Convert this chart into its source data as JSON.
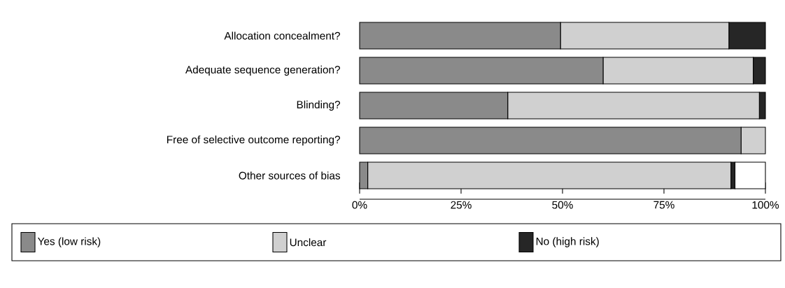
{
  "chart_data": {
    "type": "bar",
    "orientation": "horizontal",
    "stacked": true,
    "categories": [
      "Allocation concealment?",
      "Adequate sequence generation?",
      "Blinding?",
      "Free of selective outcome reporting?",
      "Other sources of bias"
    ],
    "series": [
      {
        "name": "Yes (low risk)",
        "color": "#8a8a8a",
        "values": [
          49.5,
          60,
          36.5,
          94,
          2
        ]
      },
      {
        "name": "Unclear",
        "color": "#d0d0d0",
        "values": [
          41.5,
          37,
          62,
          6,
          89.5
        ]
      },
      {
        "name": "No (high risk)",
        "color": "#262626",
        "values": [
          9,
          3,
          1.5,
          0,
          1
        ]
      },
      {
        "color": "#ffffff",
        "values": [
          0,
          0,
          0,
          0,
          7.5
        ]
      }
    ],
    "xlim": [
      0,
      100
    ],
    "xticks": [
      {
        "value": 0,
        "label": "0%"
      },
      {
        "value": 25,
        "label": "25%"
      },
      {
        "value": 50,
        "label": "50%"
      },
      {
        "value": 75,
        "label": "75%"
      },
      {
        "value": 100,
        "label": "100%"
      }
    ],
    "grid": false,
    "legend": "bottom"
  }
}
